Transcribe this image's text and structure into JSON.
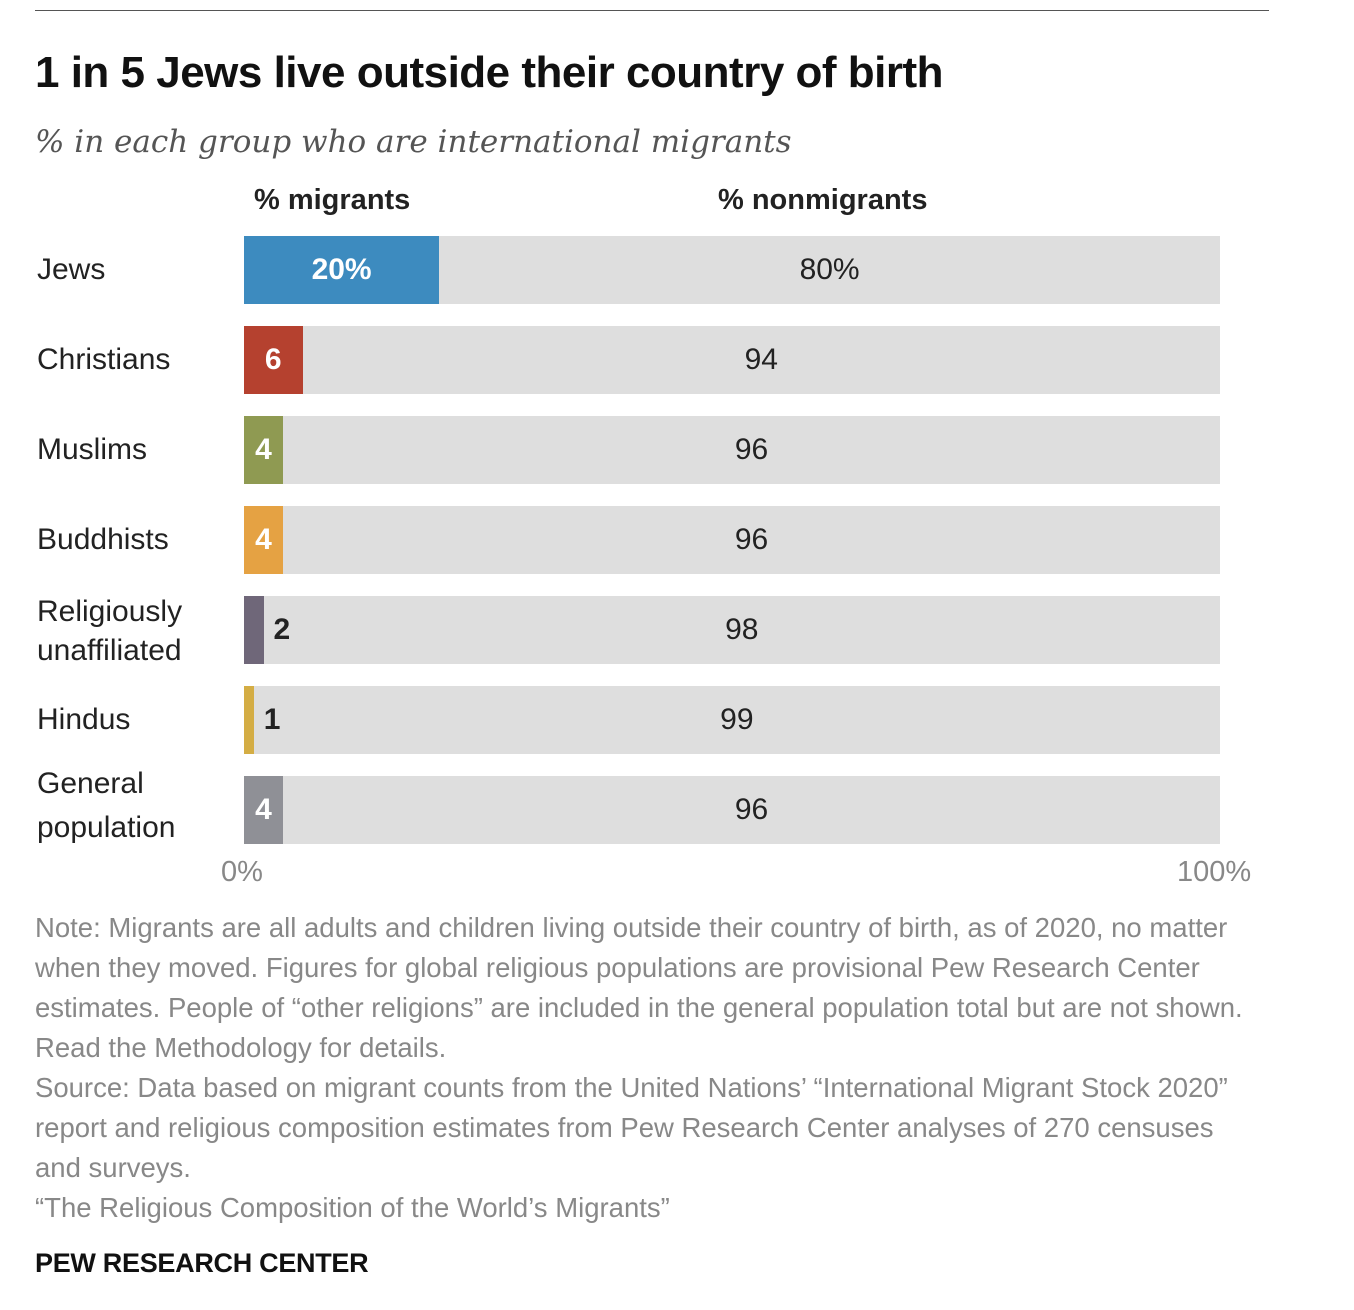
{
  "chart_data": {
    "type": "bar",
    "orientation": "horizontal",
    "stacked": true,
    "title": "1 in 5 Jews live outside their country of birth",
    "subtitle": "% in each group who are international migrants",
    "categories": [
      "Jews",
      "Christians",
      "Muslims",
      "Buddhists",
      "Religiously unaffiliated",
      "Hindus",
      "General population"
    ],
    "series": [
      {
        "name": "% migrants",
        "values": [
          20,
          6,
          4,
          4,
          2,
          1,
          4
        ],
        "labels": [
          "20%",
          "6",
          "4",
          "4",
          "2",
          "1",
          "4"
        ]
      },
      {
        "name": "% nonmigrants",
        "values": [
          80,
          94,
          96,
          96,
          98,
          99,
          96
        ],
        "labels": [
          "80%",
          "94",
          "96",
          "96",
          "98",
          "99",
          "96"
        ]
      }
    ],
    "colors": [
      "#3d8bbf",
      "#b5412f",
      "#8f9a52",
      "#e5a243",
      "#6f6779",
      "#d4ad44",
      "#8f9096"
    ],
    "nonmigrant_color": "#dedede",
    "xlim": [
      0,
      100
    ],
    "x_tick_labels": [
      "0%",
      "100%"
    ],
    "grid": false
  },
  "note": "Note: Migrants are all adults and children living outside their country of birth, as of 2020, no matter when they moved. Figures for global religious populations are provisional Pew Research Center estimates. People of “other religions” are included in the general population total but are not shown. Read the Methodology for details.",
  "source": "Source: Data based on migrant counts from the United Nations’ “International Migrant Stock 2020” report and religious composition estimates from Pew Research Center analyses of 270 censuses and surveys.",
  "report": "“The Religious Composition of the World’s Migrants”",
  "brand": "PEW RESEARCH CENTER"
}
